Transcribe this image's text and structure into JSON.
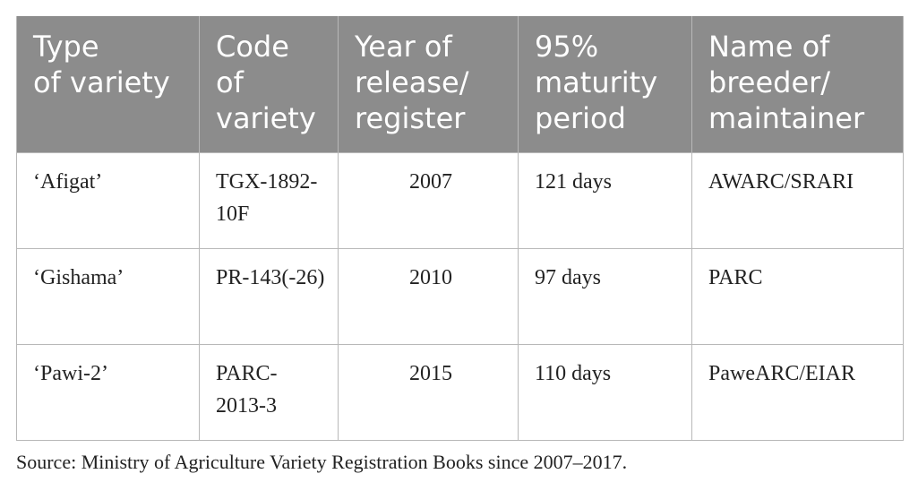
{
  "table": {
    "header": [
      "Type\nof variety",
      "Code\nof\nvariety",
      "Year of\nrelease/\nregister",
      "95%\nmaturity\nperiod",
      "Name of\nbreeder/\nmaintainer"
    ],
    "rows": [
      [
        "‘Afigat’",
        "TGX-1892-10F",
        "2007",
        "121 days",
        "AWARC/SRARI"
      ],
      [
        "‘Gishama’",
        "PR-143(-26)",
        "2010",
        "97 days",
        "PARC"
      ],
      [
        "‘Pawi-2’",
        "PARC-2013-3",
        "2015",
        "110 days",
        "PaweARC/EIAR"
      ]
    ]
  },
  "source": "Source: Ministry of Agriculture Variety Registration Books since 2007–2017."
}
